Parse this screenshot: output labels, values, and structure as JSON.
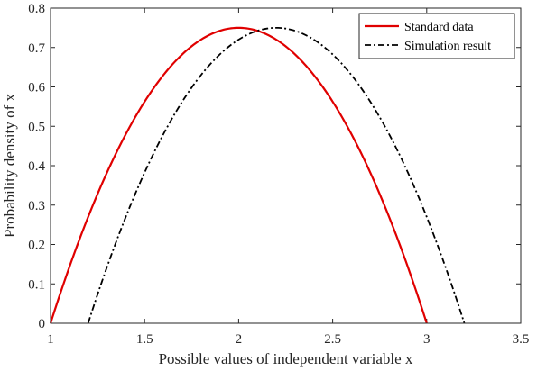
{
  "chart_data": {
    "type": "line",
    "xlabel": "Possible values of independent variable x",
    "ylabel": "Probability density of x",
    "xlim": [
      1,
      3.5
    ],
    "ylim": [
      0,
      0.8
    ],
    "xticks": [
      1,
      1.5,
      2,
      2.5,
      3,
      3.5
    ],
    "xtick_labels": [
      "1",
      "1.5",
      "2",
      "2.5",
      "3",
      "3.5"
    ],
    "yticks": [
      0,
      0.1,
      0.2,
      0.3,
      0.4,
      0.5,
      0.6,
      0.7,
      0.8
    ],
    "ytick_labels": [
      "0",
      "0.1",
      "0.2",
      "0.3",
      "0.4",
      "0.5",
      "0.6",
      "0.7",
      "0.8"
    ],
    "grid": false,
    "legend_position": "top-right",
    "series": [
      {
        "name": "Standard data",
        "color": "#e00000",
        "style": "solid",
        "x": [
          1.0,
          1.1,
          1.2,
          1.3,
          1.4,
          1.5,
          1.6,
          1.7,
          1.8,
          1.9,
          2.0,
          2.1,
          2.2,
          2.3,
          2.4,
          2.5,
          2.6,
          2.7,
          2.8,
          2.9,
          3.0
        ],
        "y": [
          0.0,
          0.1425,
          0.27,
          0.3825,
          0.48,
          0.5625,
          0.63,
          0.6825,
          0.72,
          0.7425,
          0.75,
          0.7425,
          0.72,
          0.6825,
          0.63,
          0.5625,
          0.48,
          0.3825,
          0.27,
          0.1425,
          0.0
        ]
      },
      {
        "name": "Simulation result",
        "color": "#000000",
        "style": "dashdot",
        "x": [
          1.2,
          1.3,
          1.4,
          1.5,
          1.6,
          1.7,
          1.8,
          1.9,
          2.0,
          2.1,
          2.2,
          2.3,
          2.4,
          2.5,
          2.6,
          2.7,
          2.8,
          2.9,
          3.0,
          3.1,
          3.2
        ],
        "y": [
          0.0,
          0.1425,
          0.27,
          0.3825,
          0.48,
          0.5625,
          0.63,
          0.6825,
          0.72,
          0.7425,
          0.75,
          0.7425,
          0.72,
          0.6825,
          0.63,
          0.5625,
          0.48,
          0.3825,
          0.27,
          0.1425,
          0.0
        ]
      }
    ]
  }
}
